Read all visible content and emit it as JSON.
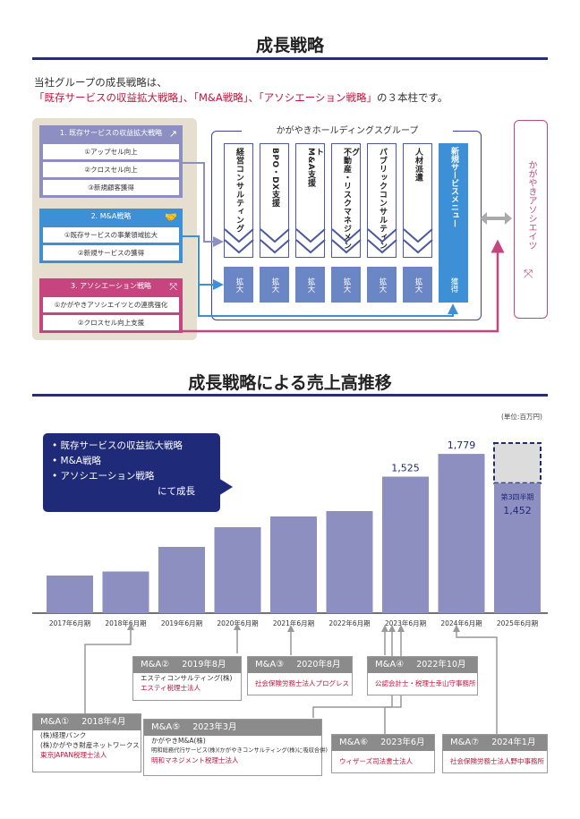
{
  "section1": {
    "title": "成長戦略",
    "intro_line1": "当社グループの成長戦略は、",
    "intro_line2_red": "「既存サービスの収益拡大戦略」、「M&A戦略」、「アソシエーション戦略」",
    "intro_line2_tail": "の３本柱です。"
  },
  "strategies": [
    {
      "title": "1. 既存サービスの収益拡大戦略",
      "icon": "growth-arrow-icon",
      "color": "#8c8fc0",
      "items": [
        "①アップセル向上",
        "②クロスセル向上",
        "③新規顧客獲得"
      ]
    },
    {
      "title": "2. M&A戦略",
      "icon": "handshake-icon",
      "color": "#3d8fd6",
      "items": [
        "①既存サービスの事業領域拡大",
        "②新規サービスの獲得"
      ]
    },
    {
      "title": "3. アソシエーション戦略",
      "icon": "link-icon",
      "color": "#c6457f",
      "items": [
        "①かがやきアソシエイツとの連携強化",
        "②クロスセル向上支援"
      ]
    }
  ],
  "group": {
    "title": "かがやきホールディングスグループ",
    "services": [
      "経営コンサルティング",
      "BPO・DX支援",
      "M&A支援",
      "不動産・リスクマネジメント",
      "パブリックコンサルティング",
      "人材派遣"
    ],
    "expand_label": "拡大",
    "new_service": "新規サービスメニュー",
    "acquire_label": "獲得"
  },
  "associates": {
    "label": "かがやきアソシエイツ",
    "icon": "link-icon"
  },
  "section2": {
    "title": "成長戦略による売上高推移",
    "unit": "(単位:百万円)"
  },
  "callout": {
    "items": [
      "• 既存サービスの収益拡大戦略",
      "• M&A戦略",
      "• アソシエーション戦略"
    ],
    "suffix": "にて成長"
  },
  "chart_data": {
    "type": "bar",
    "categories": [
      "2017年6月期",
      "2018年6月期",
      "2019年6月期",
      "2020年6月期",
      "2021年6月期",
      "2022年6月期",
      "2023年6月期",
      "2024年6月期",
      "2025年6月期"
    ],
    "values": [
      420,
      465,
      740,
      960,
      1080,
      1140,
      1525,
      1779,
      1452
    ],
    "labels": [
      "",
      "",
      "",
      "",
      "",
      "",
      "1,525",
      "1,779",
      "1,452"
    ],
    "projected_label": "第3四半期",
    "ylim": [
      0,
      2200
    ],
    "bar_color": "#8c8fc0",
    "projected_color": "#dcdcdc"
  },
  "ma_deals": [
    {
      "no": "M&A①",
      "date": "2018年4月",
      "lines": [
        "(株)経理バンク",
        "(株)かがやき財産ネットワークス"
      ],
      "red": [
        "東京JAPAN税理士法人"
      ]
    },
    {
      "no": "M&A②",
      "date": "2019年8月",
      "lines": [
        "エスティコンサルティング(株)"
      ],
      "red": [
        "エスティ税理士法人"
      ]
    },
    {
      "no": "M&A③",
      "date": "2020年8月",
      "lines": [],
      "red": [
        "社会保険労務士法人プログレス"
      ]
    },
    {
      "no": "M&A④",
      "date": "2022年10月",
      "lines": [],
      "red": [
        "公認会計士・税理士幸山守事務所"
      ]
    },
    {
      "no": "M&A⑤",
      "date": "2023年3月",
      "lines": [
        "かがやきM&A(株)",
        "明和総務代行サービス(株)(かがやきコンサルティング(株)に吸収合併)"
      ],
      "red": [
        "明和マネジメント税理士法人"
      ]
    },
    {
      "no": "M&A⑥",
      "date": "2023年6月",
      "lines": [],
      "red": [
        "ウィザーズ司法書士法人"
      ]
    },
    {
      "no": "M&A⑦",
      "date": "2024年1月",
      "lines": [],
      "red": [
        "社会保険労務士法人野中事務所"
      ]
    }
  ]
}
